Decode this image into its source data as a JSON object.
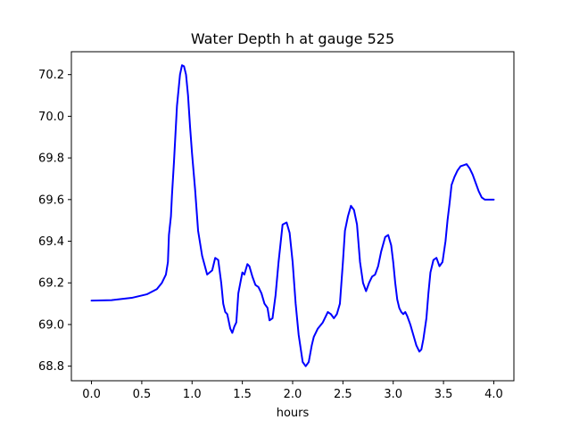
{
  "chart_data": {
    "type": "line",
    "title": "Water Depth h at gauge 525",
    "xlabel": "hours",
    "ylabel": "",
    "xlim": [
      -0.2,
      4.2
    ],
    "ylim": [
      68.73,
      70.31
    ],
    "xticks": [
      0.0,
      0.5,
      1.0,
      1.5,
      2.0,
      2.5,
      3.0,
      3.5,
      4.0
    ],
    "xtick_labels": [
      "0.0",
      "0.5",
      "1.0",
      "1.5",
      "2.0",
      "2.5",
      "3.0",
      "3.5",
      "4.0"
    ],
    "yticks": [
      68.8,
      69.0,
      69.2,
      69.4,
      69.6,
      69.8,
      70.0,
      70.2
    ],
    "ytick_labels": [
      "68.8",
      "69.0",
      "69.2",
      "69.4",
      "69.6",
      "69.8",
      "70.0",
      "70.2"
    ],
    "grid": false,
    "series": [
      {
        "color": "#0000ff",
        "x": [
          0.0,
          0.2,
          0.4,
          0.55,
          0.65,
          0.7,
          0.74,
          0.76,
          0.77,
          0.79,
          0.8,
          0.82,
          0.85,
          0.88,
          0.9,
          0.92,
          0.94,
          0.96,
          0.98,
          1.0,
          1.03,
          1.06,
          1.1,
          1.15,
          1.2,
          1.23,
          1.26,
          1.29,
          1.31,
          1.33,
          1.35,
          1.38,
          1.4,
          1.42,
          1.44,
          1.46,
          1.48,
          1.5,
          1.52,
          1.55,
          1.57,
          1.6,
          1.63,
          1.66,
          1.69,
          1.72,
          1.75,
          1.77,
          1.8,
          1.83,
          1.86,
          1.9,
          1.94,
          1.97,
          2.0,
          2.03,
          2.06,
          2.1,
          2.13,
          2.16,
          2.19,
          2.21,
          2.25,
          2.3,
          2.35,
          2.38,
          2.41,
          2.44,
          2.47,
          2.5,
          2.52,
          2.55,
          2.58,
          2.61,
          2.64,
          2.67,
          2.7,
          2.73,
          2.76,
          2.79,
          2.82,
          2.85,
          2.88,
          2.92,
          2.95,
          2.98,
          3.0,
          3.02,
          3.04,
          3.06,
          3.08,
          3.1,
          3.12,
          3.14,
          3.17,
          3.2,
          3.23,
          3.26,
          3.28,
          3.3,
          3.33,
          3.35,
          3.37,
          3.4,
          3.43,
          3.46,
          3.49,
          3.52,
          3.54,
          3.56,
          3.58,
          3.61,
          3.64,
          3.67,
          3.7,
          3.73,
          3.76,
          3.79,
          3.82,
          3.85,
          3.88,
          3.91,
          3.94,
          3.97,
          4.0
        ],
        "y": [
          69.115,
          69.117,
          69.128,
          69.145,
          69.17,
          69.2,
          69.24,
          69.3,
          69.43,
          69.52,
          69.62,
          69.78,
          70.05,
          70.2,
          70.245,
          70.24,
          70.2,
          70.1,
          69.95,
          69.82,
          69.65,
          69.45,
          69.33,
          69.24,
          69.26,
          69.32,
          69.31,
          69.2,
          69.1,
          69.06,
          69.05,
          68.98,
          68.96,
          68.99,
          69.01,
          69.15,
          69.2,
          69.25,
          69.24,
          69.29,
          69.28,
          69.23,
          69.19,
          69.18,
          69.15,
          69.1,
          69.08,
          69.02,
          69.03,
          69.14,
          69.3,
          69.48,
          69.49,
          69.44,
          69.3,
          69.1,
          68.95,
          68.82,
          68.8,
          68.82,
          68.9,
          68.94,
          68.98,
          69.01,
          69.06,
          69.05,
          69.03,
          69.05,
          69.1,
          69.3,
          69.45,
          69.52,
          69.57,
          69.55,
          69.48,
          69.3,
          69.2,
          69.16,
          69.2,
          69.23,
          69.24,
          69.28,
          69.35,
          69.42,
          69.43,
          69.38,
          69.3,
          69.2,
          69.12,
          69.08,
          69.06,
          69.05,
          69.06,
          69.04,
          69.0,
          68.95,
          68.9,
          68.87,
          68.88,
          68.93,
          69.03,
          69.15,
          69.25,
          69.31,
          69.32,
          69.28,
          69.3,
          69.4,
          69.5,
          69.58,
          69.67,
          69.71,
          69.74,
          69.76,
          69.765,
          69.77,
          69.75,
          69.72,
          69.68,
          69.64,
          69.61,
          69.6,
          69.6,
          69.6,
          69.6
        ]
      }
    ]
  }
}
